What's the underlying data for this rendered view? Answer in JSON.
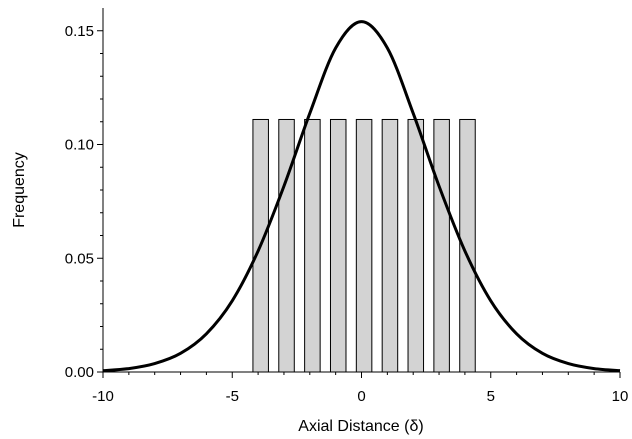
{
  "chart_data": {
    "type": "bar",
    "title": "",
    "xlabel": "Axial Distance (δ)",
    "ylabel": "Frequency",
    "xlim": [
      -10,
      10
    ],
    "ylim": [
      0,
      0.16
    ],
    "xticks": [
      "-10",
      "-5",
      "0",
      "5",
      "10"
    ],
    "yticks": [
      "0.00",
      "0.05",
      "0.10",
      "0.15"
    ],
    "grid": false,
    "legend": "none",
    "bars": {
      "color": "#d3d3d3",
      "edgecolor": "#000000",
      "x": [
        -3.9,
        -2.9,
        -1.9,
        -0.9,
        0.1,
        1.1,
        2.1,
        3.1,
        4.1
      ],
      "width": 0.6,
      "values": [
        0.111,
        0.111,
        0.111,
        0.111,
        0.111,
        0.111,
        0.111,
        0.111,
        0.111
      ]
    },
    "curve": {
      "type": "line",
      "color": "#000000",
      "x": [
        -10,
        -9,
        -8,
        -7,
        -6,
        -5,
        -4,
        -3,
        -2,
        -1,
        0,
        1,
        2,
        3,
        4,
        5,
        6,
        7,
        8,
        9,
        10
      ],
      "values": [
        0.0006,
        0.0015,
        0.0037,
        0.0082,
        0.0168,
        0.0313,
        0.0532,
        0.0817,
        0.1137,
        0.1424,
        0.154,
        0.1424,
        0.1137,
        0.0817,
        0.0532,
        0.0313,
        0.0168,
        0.0082,
        0.0037,
        0.0015,
        0.0006
      ]
    }
  }
}
